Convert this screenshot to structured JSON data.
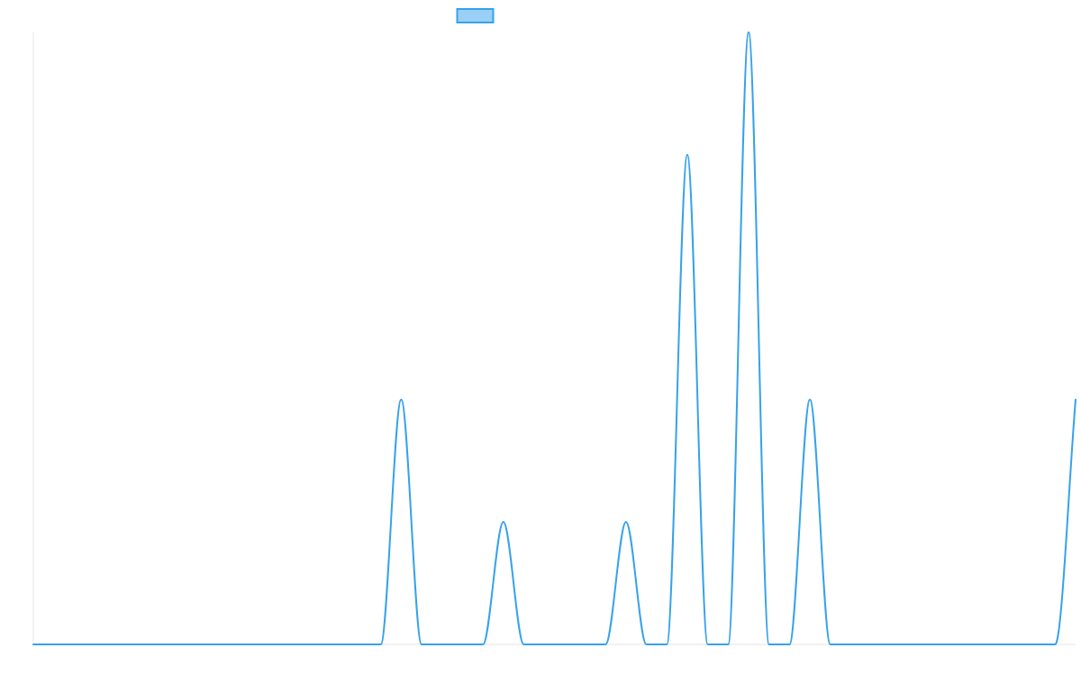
{
  "chart_data": {
    "type": "line",
    "title": "",
    "xlabel": "",
    "ylabel": "",
    "x": [
      0,
      1,
      2,
      3,
      4,
      5,
      6,
      7,
      8,
      9,
      10,
      11,
      12,
      13,
      14,
      15,
      16,
      17,
      18,
      19,
      20,
      21,
      22,
      23,
      24,
      25,
      26,
      27,
      28,
      29,
      30,
      31,
      32,
      33,
      34,
      35,
      36,
      37,
      38,
      39,
      40,
      41,
      42,
      43,
      44,
      45,
      46,
      47,
      48,
      49,
      50,
      51
    ],
    "series": [
      {
        "name": "",
        "color": "#36a2eb",
        "fill": "#9ad0f5",
        "values": [
          0,
          0,
          0,
          0,
          0,
          0,
          0,
          0,
          0,
          0,
          0,
          0,
          0,
          0,
          0,
          0,
          0,
          0,
          2,
          0,
          0,
          0,
          0,
          1,
          0,
          0,
          0,
          0,
          0,
          1,
          0,
          0,
          4,
          0,
          0,
          5,
          0,
          0,
          2,
          0,
          0,
          0,
          0,
          0,
          0,
          0,
          0,
          0,
          0,
          0,
          0,
          2
        ]
      }
    ],
    "ylim": [
      0,
      5
    ],
    "grid": false,
    "legend": "top-center",
    "curve": "smooth",
    "background": "#ffffff",
    "axis_color": "#e6e6e6"
  }
}
